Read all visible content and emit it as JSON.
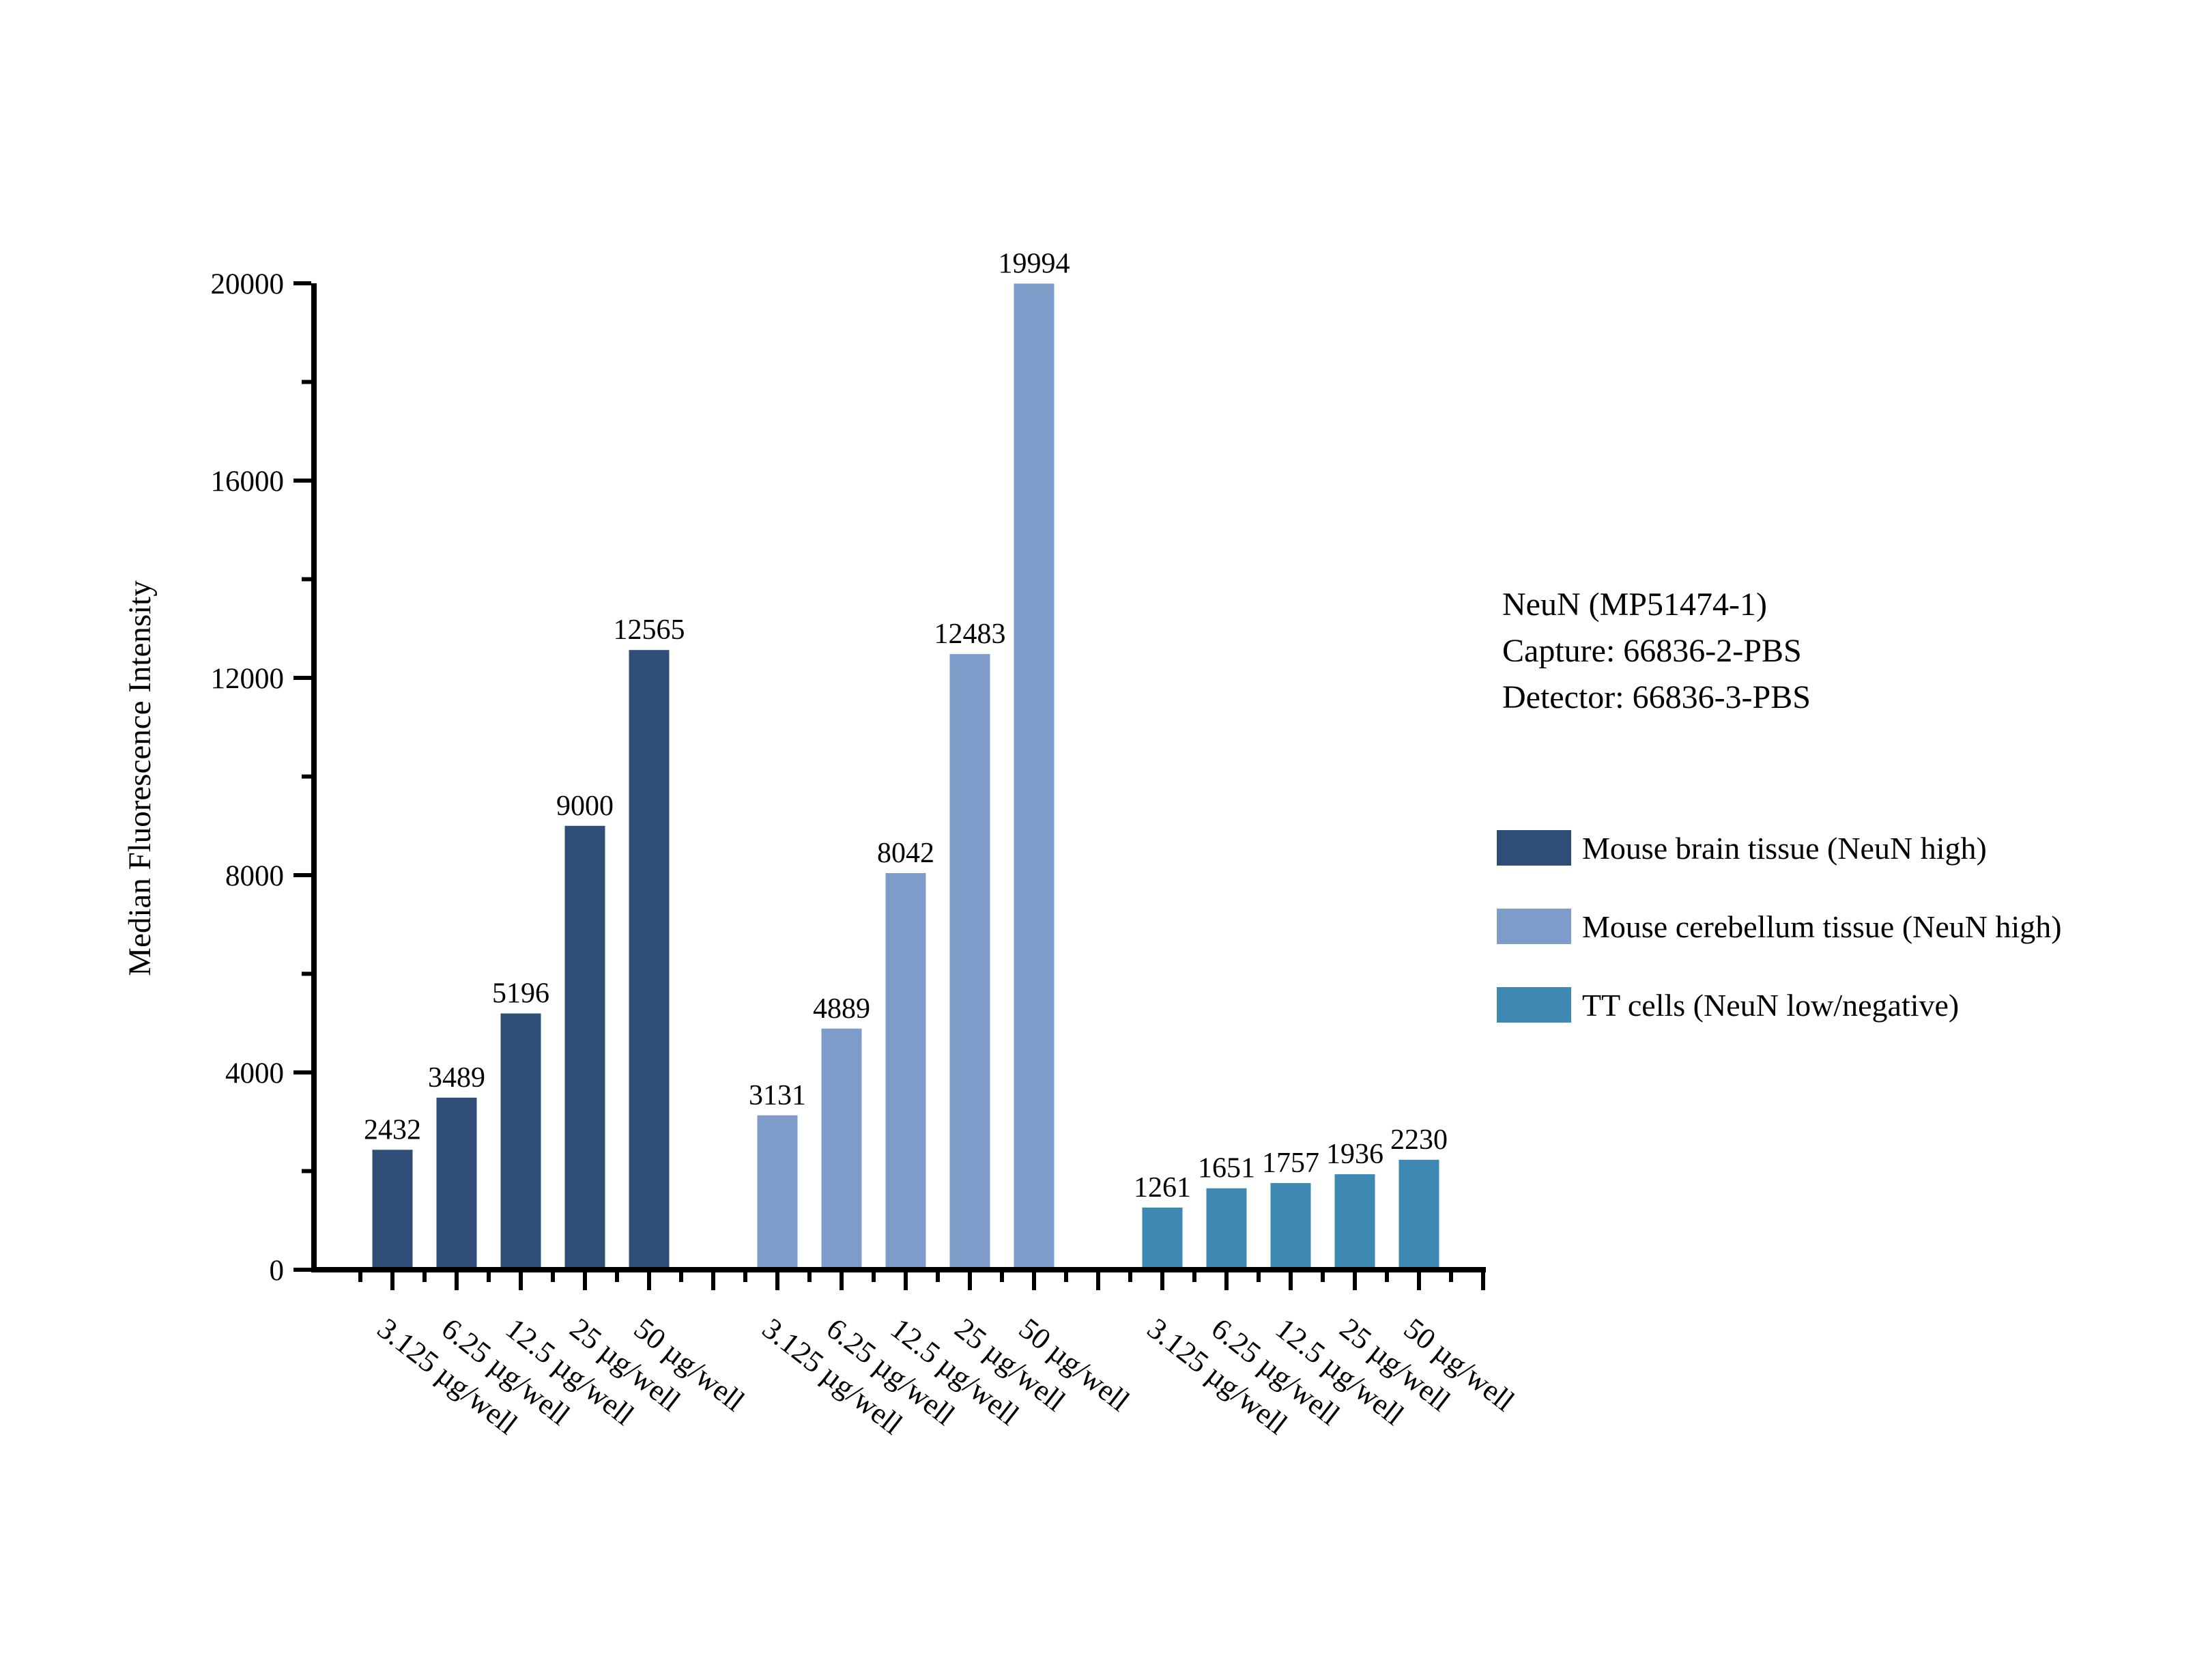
{
  "annotation": {
    "lines": [
      "NeuN (MP51474-1)",
      "Capture: 66836-2-PBS",
      "Detector: 66836-3-PBS"
    ]
  },
  "chart_data": {
    "type": "bar",
    "ylabel": "Median Fluorescence Intensity",
    "ylim": [
      0,
      20000
    ],
    "y_major_ticks": [
      0,
      4000,
      8000,
      12000,
      16000,
      20000
    ],
    "y_minor_ticks": [
      2000,
      6000,
      10000,
      14000,
      18000
    ],
    "categories": [
      "3.125 µg/well",
      "6.25 µg/well",
      "12.5 µg/well",
      "25 µg/well",
      "50 µg/well"
    ],
    "series": [
      {
        "name": "Mouse brain tissue (NeuN high)",
        "color": "#2E4E78",
        "values": [
          2432,
          3489,
          5196,
          9000,
          12565
        ]
      },
      {
        "name": "Mouse cerebellum tissue (NeuN high)",
        "color": "#7D9CCA",
        "values": [
          3131,
          4889,
          8042,
          12483,
          19994
        ]
      },
      {
        "name": "TT cells (NeuN low/negative)",
        "color": "#3E88B4",
        "values": [
          1261,
          1651,
          1757,
          1936,
          2230
        ]
      }
    ],
    "bar_value_labels": true,
    "grid": false,
    "legend_position": "right"
  }
}
